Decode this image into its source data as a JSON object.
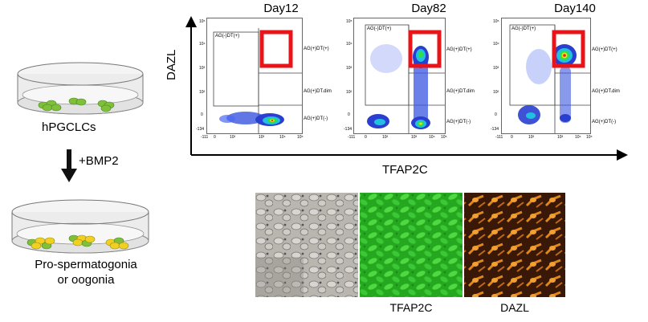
{
  "left": {
    "dish1_label": "hPGCLCs",
    "arrow_label": "+BMP2",
    "dish2_label_line1": "Pro-spermatogonia",
    "dish2_label_line2": "or oogonia"
  },
  "flow": {
    "y_axis_label": "DAZL",
    "x_axis_label": "TFAP2C",
    "panels": [
      {
        "title": "Day12",
        "gates": {
          "upper_left": "AG(-)DT(+)",
          "upper_right": "AG(+)DT(+)",
          "mid_right": "AG(+)DT.dim",
          "low_right": "AG(+)DT(-)"
        }
      },
      {
        "title": "Day82",
        "gates": {
          "upper_left": "AG(-)DT(+)",
          "upper_right": "AG(+)DT(+)",
          "mid_right": "AG(+)DT.dim",
          "low_right": "AG(+)DT(-)"
        }
      },
      {
        "title": "Day140",
        "gates": {
          "upper_left": "AG(-)DT(+)",
          "upper_right": "AG(+)DT(+)",
          "mid_right": "AG(+)DT.dim",
          "low_right": "AG(+)DT(-)"
        }
      }
    ],
    "x_ticks": [
      "-111",
      "0",
      "10²",
      "10³",
      "10⁴",
      "10⁵"
    ],
    "y_ticks": [
      "-134",
      "0",
      "10²",
      "10³",
      "10⁴",
      "10⁵"
    ],
    "highlight_color": "#e8141a"
  },
  "micrographs": {
    "captions": [
      "",
      "TFAP2C",
      "DAZL"
    ],
    "colors": {
      "bright": "#b8b4ae",
      "green": "#2fc02a",
      "orange": "#e08a1a"
    }
  }
}
